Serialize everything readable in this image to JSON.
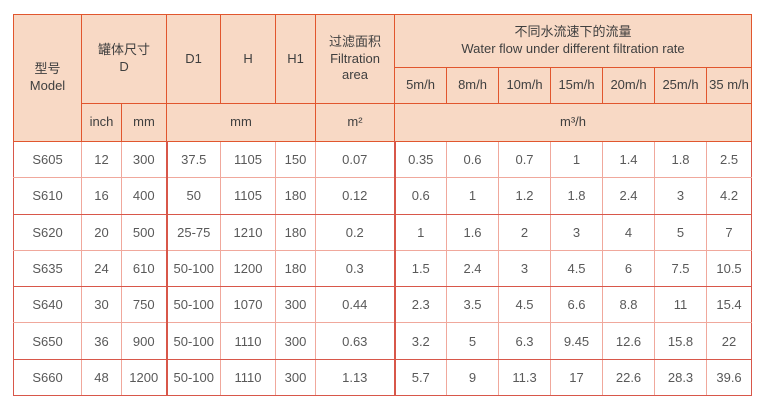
{
  "colors": {
    "header_bg": "#f8d9c5",
    "header_border": "#e1562e",
    "grid_light": "#f0a89c",
    "grid_dark": "#d8574a",
    "header_text": "#3f3f3f",
    "data_text": "#595959",
    "page_bg": "#ffffff"
  },
  "table": {
    "header": {
      "model_zh": "型号",
      "model_en": "Model",
      "tank_zh": "罐体尺寸",
      "tank_en": "D",
      "d1": "D1",
      "h": "H",
      "h1": "H1",
      "filtration_zh": "过滤面积",
      "filtration_en": "Filtration area",
      "flow_zh": "不同水流速下的流量",
      "flow_en": "Water flow under different filtration rate",
      "rates": [
        "5m/h",
        "8m/h",
        "10m/h",
        "15m/h",
        "20m/h",
        "25m/h",
        "35 m/h"
      ],
      "unit_inch": "inch",
      "unit_mm": "mm",
      "unit_mm_merged": "mm",
      "unit_m2": "m²",
      "unit_m3h": "m³/h"
    },
    "rows": [
      [
        "S605",
        "12",
        "300",
        "37.5",
        "1105",
        "150",
        "0.07",
        "0.35",
        "0.6",
        "0.7",
        "1",
        "1.4",
        "1.8",
        "2.5"
      ],
      [
        "S610",
        "16",
        "400",
        "50",
        "1105",
        "180",
        "0.12",
        "0.6",
        "1",
        "1.2",
        "1.8",
        "2.4",
        "3",
        "4.2"
      ],
      [
        "S620",
        "20",
        "500",
        "25-75",
        "1210",
        "180",
        "0.2",
        "1",
        "1.6",
        "2",
        "3",
        "4",
        "5",
        "7"
      ],
      [
        "S635",
        "24",
        "610",
        "50-100",
        "1200",
        "180",
        "0.3",
        "1.5",
        "2.4",
        "3",
        "4.5",
        "6",
        "7.5",
        "10.5"
      ],
      [
        "S640",
        "30",
        "750",
        "50-100",
        "1070",
        "300",
        "0.44",
        "2.3",
        "3.5",
        "4.5",
        "6.6",
        "8.8",
        "11",
        "15.4"
      ],
      [
        "S650",
        "36",
        "900",
        "50-100",
        "1110",
        "300",
        "0.63",
        "3.2",
        "5",
        "6.3",
        "9.45",
        "12.6",
        "15.8",
        "22"
      ],
      [
        "S660",
        "48",
        "1200",
        "50-100",
        "1110",
        "300",
        "1.13",
        "5.7",
        "9",
        "11.3",
        "17",
        "22.6",
        "28.3",
        "39.6"
      ]
    ]
  }
}
